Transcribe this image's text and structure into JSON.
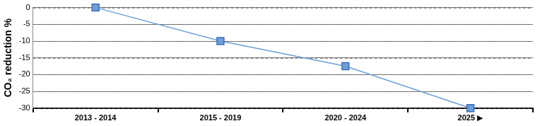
{
  "chart_data": {
    "type": "line",
    "y_label": "CO₂ reduction %",
    "categories": [
      "2013 - 2014",
      "2015 - 2019",
      "2020 - 2024",
      "2025 ▶"
    ],
    "values": [
      0,
      -10,
      -17.5,
      -30
    ],
    "color": "#6f9fd8",
    "marker": "square",
    "ylim": [
      -30,
      0
    ],
    "yticks": [
      0,
      -5,
      -10,
      -15,
      -20,
      -25,
      -30
    ],
    "grid": true
  }
}
